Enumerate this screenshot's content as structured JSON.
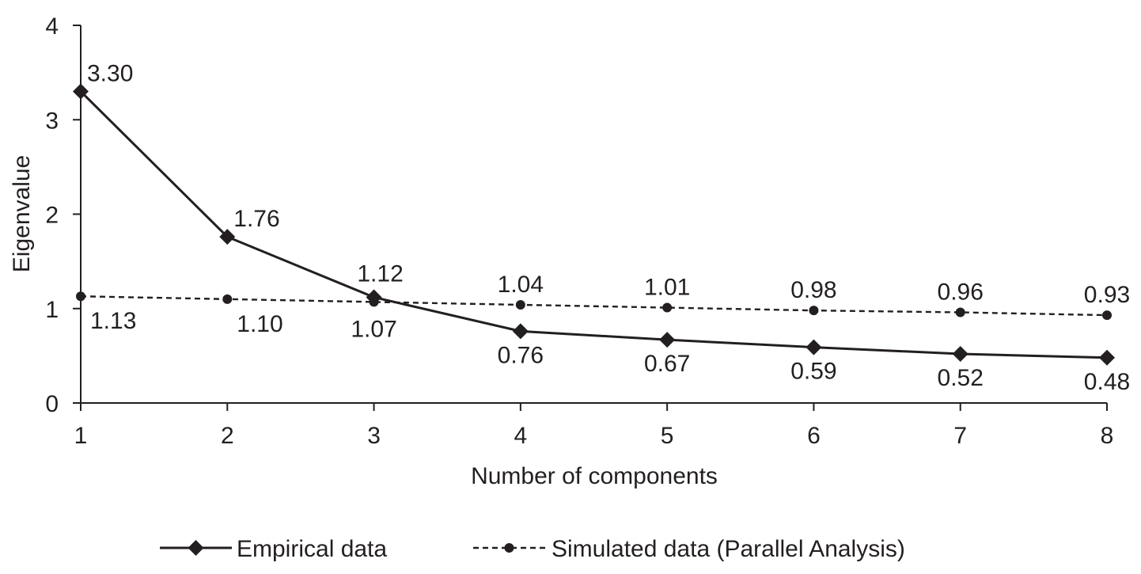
{
  "chart_data": {
    "type": "line",
    "title": "",
    "xlabel": "Number of components",
    "ylabel": "Eigenvalue",
    "x": [
      1,
      2,
      3,
      4,
      5,
      6,
      7,
      8
    ],
    "x_ticks": [
      "1",
      "2",
      "3",
      "4",
      "5",
      "6",
      "7",
      "8"
    ],
    "y_ticks": [
      "0",
      "1",
      "2",
      "3",
      "4"
    ],
    "xlim": [
      1,
      8
    ],
    "ylim": [
      0,
      4
    ],
    "grid": false,
    "legend_position": "bottom",
    "series": [
      {
        "name": "Empirical data",
        "values": [
          3.3,
          1.76,
          1.12,
          0.76,
          0.67,
          0.59,
          0.52,
          0.48
        ],
        "labels": [
          "3.30",
          "1.76",
          "1.12",
          "0.76",
          "0.67",
          "0.59",
          "0.52",
          "0.48"
        ],
        "line_style": "solid",
        "marker": "diamond",
        "color": "#231f20"
      },
      {
        "name": "Simulated data (Parallel Analysis)",
        "values": [
          1.13,
          1.1,
          1.07,
          1.04,
          1.01,
          0.98,
          0.96,
          0.93
        ],
        "labels": [
          "1.13",
          "1.10",
          "1.07",
          "1.04",
          "1.01",
          "0.98",
          "0.96",
          "0.93"
        ],
        "line_style": "dashed",
        "marker": "circle",
        "color": "#231f20"
      }
    ]
  }
}
